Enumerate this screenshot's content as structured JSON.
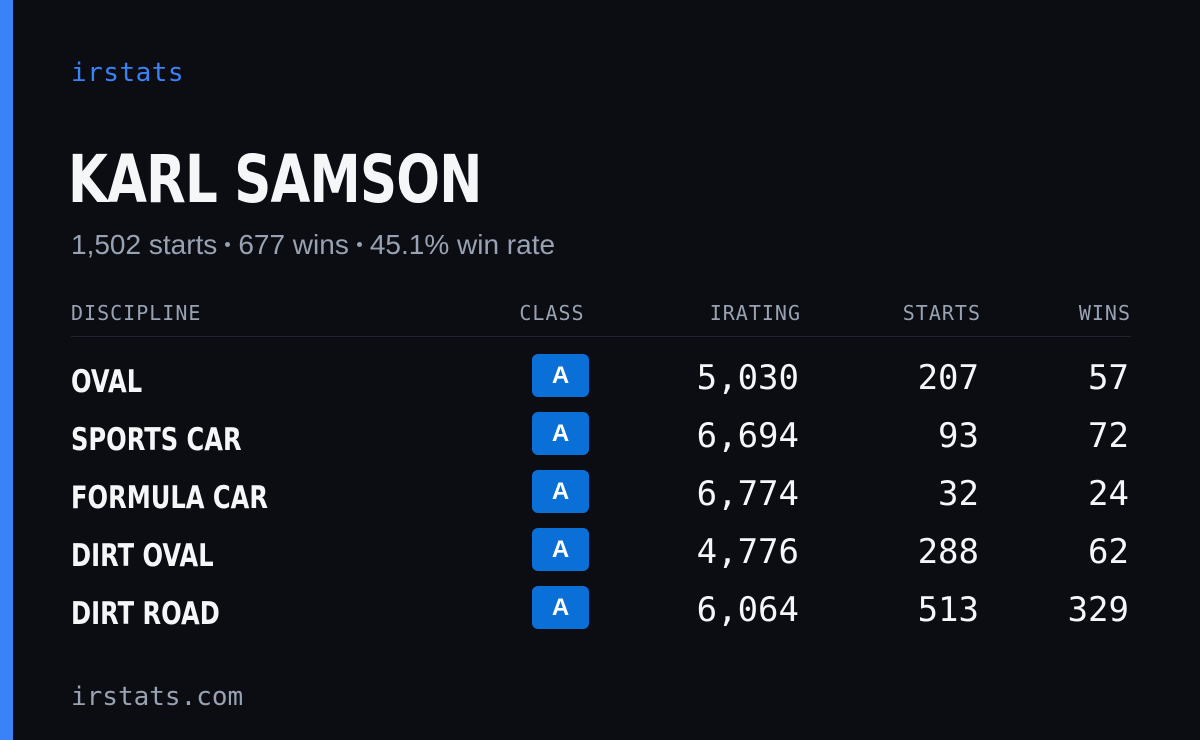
{
  "brand": "irstats",
  "driver": {
    "name": "KARL SAMSON",
    "starts": "1,502 starts",
    "wins": "677 wins",
    "win_rate": "45.1% win rate"
  },
  "table": {
    "headers": {
      "discipline": "DISCIPLINE",
      "class": "CLASS",
      "irating": "IRATING",
      "starts": "STARTS",
      "wins": "WINS"
    },
    "rows": [
      {
        "discipline": "OVAL",
        "class": "A",
        "irating": "5,030",
        "starts": "207",
        "wins": "57"
      },
      {
        "discipline": "SPORTS CAR",
        "class": "A",
        "irating": "6,694",
        "starts": "93",
        "wins": "72"
      },
      {
        "discipline": "FORMULA CAR",
        "class": "A",
        "irating": "6,774",
        "starts": "32",
        "wins": "24"
      },
      {
        "discipline": "DIRT OVAL",
        "class": "A",
        "irating": "4,776",
        "starts": "288",
        "wins": "62"
      },
      {
        "discipline": "DIRT ROAD",
        "class": "A",
        "irating": "6,064",
        "starts": "513",
        "wins": "329"
      }
    ]
  },
  "footer": {
    "url": "irstats.com"
  },
  "colors": {
    "accent": "#3b82f6",
    "badge": "#0b6fd8",
    "background": "#0b0d13",
    "muted_text": "#98a2b3",
    "primary_text": "#f5f6f8"
  }
}
